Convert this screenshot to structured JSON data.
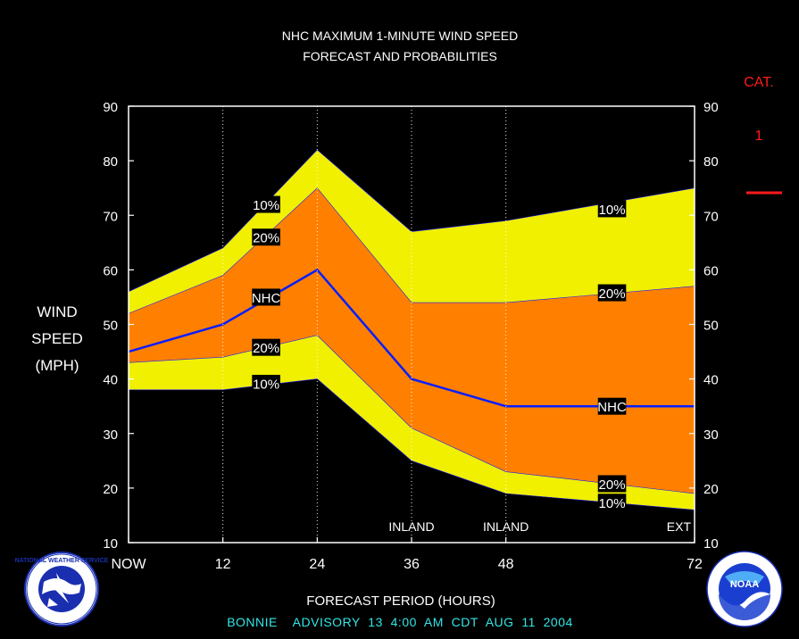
{
  "chart_data": {
    "type": "area",
    "title": "NHC MAXIMUM 1-MINUTE WIND SPEED",
    "subtitle": "FORECAST AND PROBABILITIES",
    "ylabel": [
      "WIND",
      "SPEED",
      "(MPH)"
    ],
    "xlabel": "FORECAST PERIOD (HOURS)",
    "ylim": [
      10,
      90
    ],
    "yticks": [
      10,
      20,
      30,
      40,
      50,
      60,
      70,
      80,
      90
    ],
    "xlim": [
      0,
      72
    ],
    "xticks": [
      {
        "x": 0,
        "label": "NOW"
      },
      {
        "x": 12,
        "label": "12"
      },
      {
        "x": 24,
        "label": "24"
      },
      {
        "x": 36,
        "label": "36"
      },
      {
        "x": 48,
        "label": "48"
      },
      {
        "x": 72,
        "label": "72"
      }
    ],
    "gridlines_x": [
      12,
      24,
      36,
      48,
      72
    ],
    "x": [
      0,
      12,
      24,
      36,
      48,
      72
    ],
    "series": [
      {
        "name": "10%",
        "role": "upper-10",
        "values": [
          56,
          64,
          82,
          67,
          69,
          75
        ]
      },
      {
        "name": "20%",
        "role": "upper-20",
        "values": [
          52,
          59,
          75,
          54,
          54,
          57
        ]
      },
      {
        "name": "NHC",
        "role": "forecast",
        "values": [
          45,
          50,
          60,
          40,
          35,
          35
        ]
      },
      {
        "name": "20%",
        "role": "lower-20",
        "values": [
          43,
          44,
          48,
          31,
          23,
          19
        ]
      },
      {
        "name": "10%",
        "role": "lower-10",
        "values": [
          38,
          38,
          40,
          25,
          19,
          16
        ]
      }
    ],
    "period_labels": [
      {
        "x": 36,
        "text": "INLAND"
      },
      {
        "x": 48,
        "text": "INLAND"
      },
      {
        "x": 72,
        "text": "EXT"
      }
    ],
    "series_labels": [
      {
        "text": "10%",
        "x": 17.5,
        "y": 72
      },
      {
        "text": "20%",
        "x": 17.5,
        "y": 66
      },
      {
        "text": "NHC",
        "x": 17.5,
        "y": 55
      },
      {
        "text": "20%",
        "x": 17.5,
        "y": 45.8
      },
      {
        "text": "10%",
        "x": 17.5,
        "y": 39.2
      },
      {
        "text": "10%",
        "x": 61.5,
        "y": 71.2
      },
      {
        "text": "20%",
        "x": 61.5,
        "y": 55.8
      },
      {
        "text": "NHC",
        "x": 61.5,
        "y": 35
      },
      {
        "text": "20%",
        "x": 61.5,
        "y": 20.8
      },
      {
        "text": "10%",
        "x": 61.5,
        "y": 17.4
      }
    ],
    "colors": {
      "outer_band": "#f0f000",
      "inner_band": "#ff8000",
      "forecast_line": "#0a1eff",
      "background": "#000000",
      "frame": "#ffffff"
    }
  },
  "category": {
    "title": "CAT.",
    "value": "1",
    "color": "#ff1a1a"
  },
  "advisory": "BONNIE    ADVISORY  13  4:00  AM  CDT  AUG  11  2004",
  "logos": {
    "left": {
      "name": "nws-logo",
      "text": "NATIONAL WEATHER SERVICE"
    },
    "right": {
      "name": "noaa-logo",
      "text": "NOAA"
    }
  }
}
